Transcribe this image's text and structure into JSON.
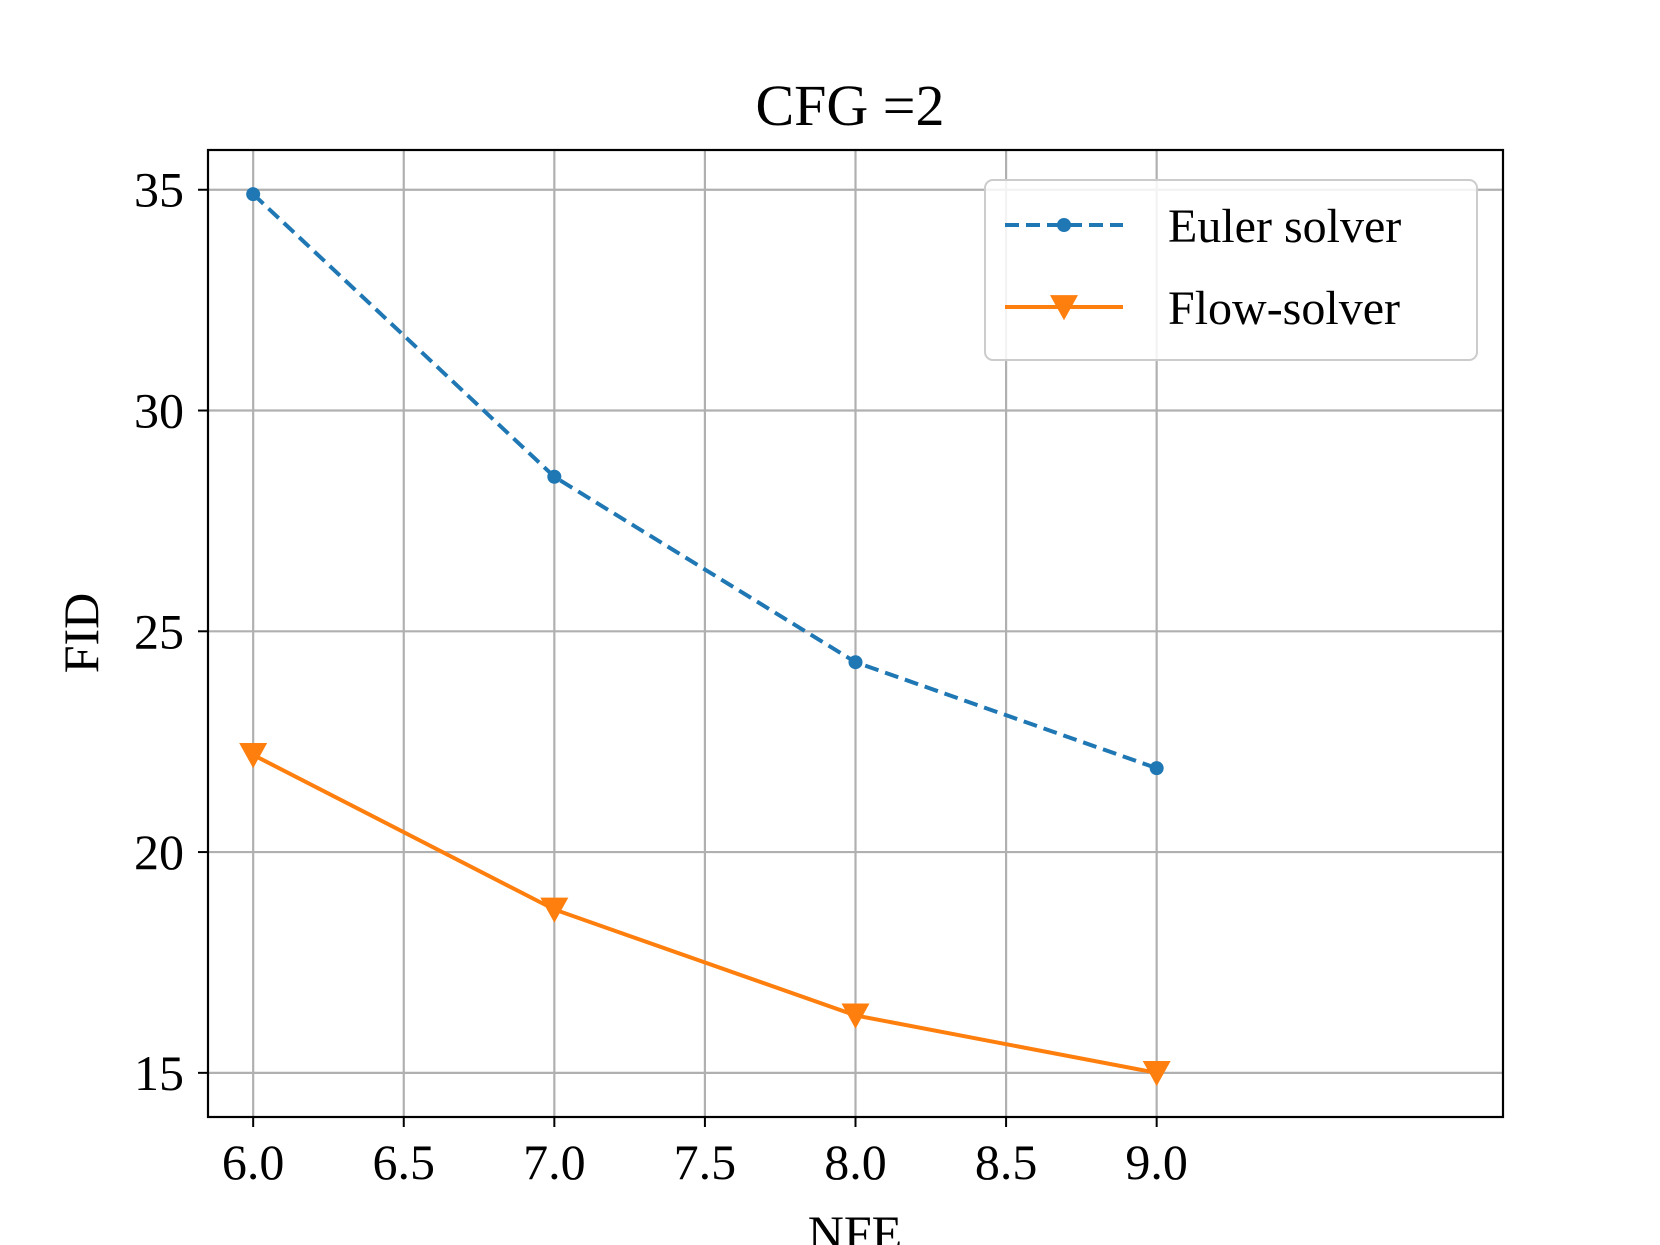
{
  "chart_data": {
    "type": "line",
    "title": "CFG =2",
    "xlabel": "NFE",
    "ylabel": "FID",
    "xlim": [
      5.85,
      10.15
    ],
    "ylim": [
      14.0,
      35.9
    ],
    "xticks": [
      6.0,
      6.5,
      7.0,
      7.5,
      8.0,
      8.5,
      9.0
    ],
    "xtick_labels": [
      "6.0",
      "6.5",
      "7.0",
      "7.5",
      "8.0",
      "8.5",
      "9.0"
    ],
    "yticks": [
      15,
      20,
      25,
      30,
      35
    ],
    "ytick_labels": [
      "15",
      "20",
      "25",
      "30",
      "35"
    ],
    "grid": true,
    "legend_position": "top-right",
    "x": [
      6.0,
      7.0,
      8.0,
      9.0
    ],
    "series": [
      {
        "name": "Euler solver",
        "values": [
          34.9,
          28.5,
          24.3,
          21.9
        ],
        "color": "#1f77b4",
        "linestyle": "dashed",
        "marker": "circle"
      },
      {
        "name": "Flow-solver",
        "values": [
          22.2,
          18.7,
          16.3,
          15.0
        ],
        "color": "#ff7f0e",
        "linestyle": "solid",
        "marker": "triangle-down"
      }
    ]
  }
}
